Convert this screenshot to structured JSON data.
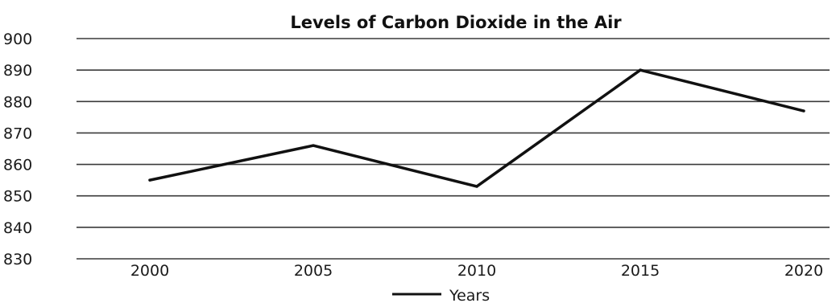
{
  "chart_data": {
    "type": "line",
    "title": "Levels of Carbon Dioxide in the Air",
    "xlabel": "",
    "ylabel": "",
    "categories": [
      "2000",
      "2005",
      "2010",
      "2015",
      "2020"
    ],
    "series": [
      {
        "name": "Years",
        "values": [
          855,
          866,
          853,
          890,
          877
        ],
        "color": "#111111"
      }
    ],
    "ylim": [
      830,
      900
    ],
    "yticks": [
      900,
      890,
      880,
      870,
      860,
      850,
      840,
      830
    ],
    "ytick_labels": [
      "900",
      "890",
      "880",
      "870",
      "860",
      "850",
      "840",
      "830"
    ],
    "grid": true,
    "legend": "bottom-center"
  }
}
